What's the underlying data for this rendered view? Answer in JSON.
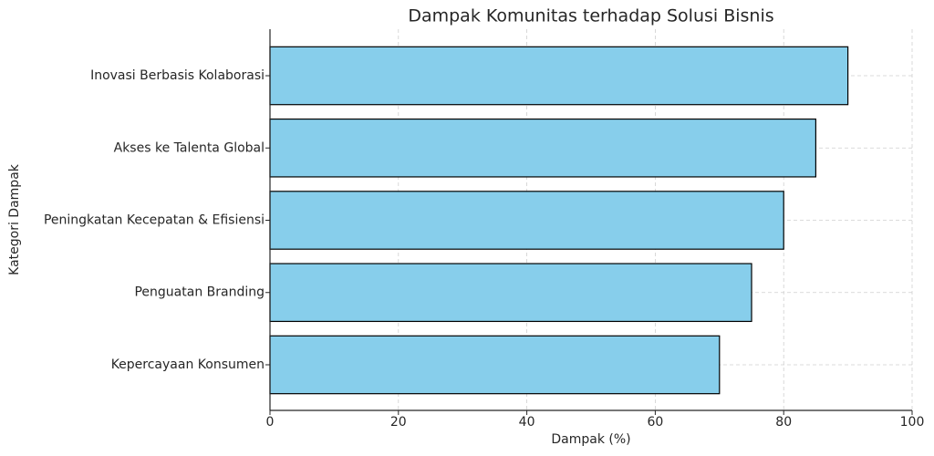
{
  "chart_data": {
    "type": "barh",
    "title": "Dampak Komunitas terhadap Solusi Bisnis",
    "x_label": "Dampak (%)",
    "y_label": "Kategori Dampak",
    "categories": [
      "Inovasi Berbasis Kolaborasi",
      "Akses ke Talenta Global",
      "Peningkatan Kecepatan & Efisiensi",
      "Penguatan Branding",
      "Kepercayaan Konsumen"
    ],
    "values": [
      90,
      85,
      80,
      75,
      70
    ],
    "color": "#87ceeb",
    "xlim": [
      0,
      100
    ],
    "xticks": [
      0,
      20,
      40,
      60,
      80,
      100
    ],
    "grid": true
  }
}
